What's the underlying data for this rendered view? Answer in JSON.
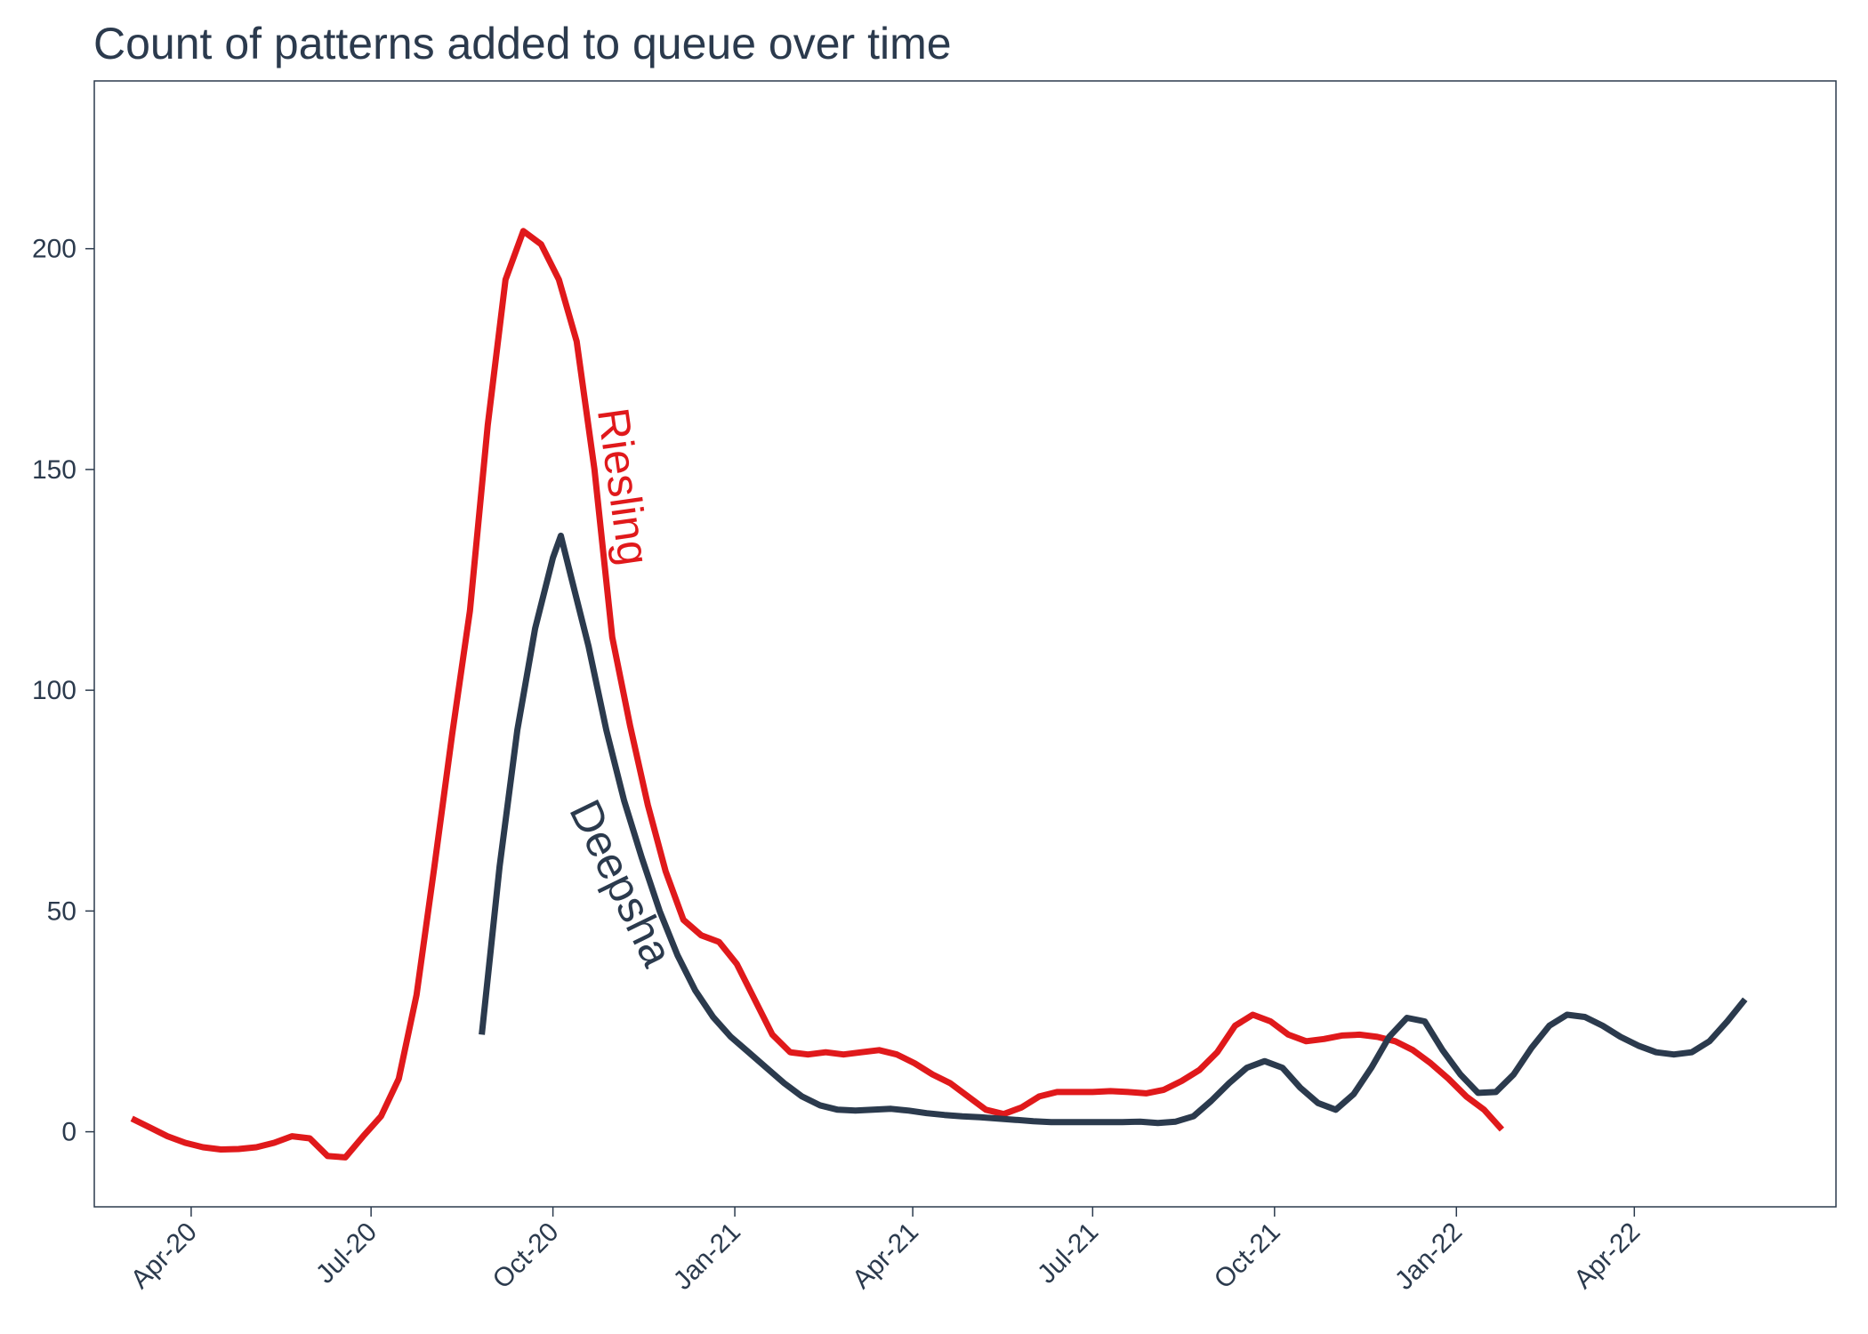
{
  "chart_data": {
    "type": "line",
    "title": "Count of patterns added to queue over time",
    "xlabel": "",
    "ylabel": "",
    "ylim": [
      -17,
      238
    ],
    "xlim": [
      "2020-02-12",
      "2022-07-12"
    ],
    "yticks": [
      0,
      50,
      100,
      150,
      200
    ],
    "xticks": [
      {
        "date": "2020-04-01",
        "label": "Apr-20"
      },
      {
        "date": "2020-07-01",
        "label": "Jul-20"
      },
      {
        "date": "2020-10-01",
        "label": "Oct-20"
      },
      {
        "date": "2021-01-01",
        "label": "Jan-21"
      },
      {
        "date": "2021-04-01",
        "label": "Apr-21"
      },
      {
        "date": "2021-07-01",
        "label": "Jul-21"
      },
      {
        "date": "2021-10-01",
        "label": "Oct-21"
      },
      {
        "date": "2022-01-01",
        "label": "Jan-22"
      },
      {
        "date": "2022-04-01",
        "label": "Apr-22"
      }
    ],
    "grid": false,
    "legend": "none",
    "series": [
      {
        "name": "Riesling",
        "color": "#e0191b",
        "points": [
          [
            "2020-03-02",
            3
          ],
          [
            "2020-03-11",
            1
          ],
          [
            "2020-03-20",
            -1
          ],
          [
            "2020-03-29",
            -2.5
          ],
          [
            "2020-04-07",
            -3.5
          ],
          [
            "2020-04-16",
            -4
          ],
          [
            "2020-04-25",
            -3.9
          ],
          [
            "2020-05-04",
            -3.5
          ],
          [
            "2020-05-13",
            -2.5
          ],
          [
            "2020-05-22",
            -1
          ],
          [
            "2020-05-31",
            -1.5
          ],
          [
            "2020-06-09",
            -5.5
          ],
          [
            "2020-06-18",
            -5.8
          ],
          [
            "2020-06-27",
            -1
          ],
          [
            "2020-07-06",
            3.5
          ],
          [
            "2020-07-15",
            12
          ],
          [
            "2020-07-24",
            31
          ],
          [
            "2020-08-02",
            60
          ],
          [
            "2020-08-11",
            90
          ],
          [
            "2020-08-20",
            118
          ],
          [
            "2020-08-29",
            160
          ],
          [
            "2020-09-07",
            193
          ],
          [
            "2020-09-16",
            204
          ],
          [
            "2020-09-25",
            201
          ],
          [
            "2020-10-04",
            193
          ],
          [
            "2020-10-13",
            179
          ],
          [
            "2020-10-22",
            150
          ],
          [
            "2020-10-31",
            112
          ],
          [
            "2020-11-09",
            92
          ],
          [
            "2020-11-18",
            74
          ],
          [
            "2020-11-27",
            59
          ],
          [
            "2020-12-06",
            48
          ],
          [
            "2020-12-15",
            44.5
          ],
          [
            "2020-12-24",
            43
          ],
          [
            "2021-01-02",
            38
          ],
          [
            "2021-01-11",
            30
          ],
          [
            "2021-01-20",
            22
          ],
          [
            "2021-01-29",
            18
          ],
          [
            "2021-02-07",
            17.5
          ],
          [
            "2021-02-16",
            18
          ],
          [
            "2021-02-25",
            17.5
          ],
          [
            "2021-03-06",
            18
          ],
          [
            "2021-03-15",
            18.5
          ],
          [
            "2021-03-24",
            17.5
          ],
          [
            "2021-04-02",
            15.5
          ],
          [
            "2021-04-11",
            13
          ],
          [
            "2021-04-20",
            11
          ],
          [
            "2021-04-29",
            8
          ],
          [
            "2021-05-08",
            5
          ],
          [
            "2021-05-17",
            4
          ],
          [
            "2021-05-26",
            5.5
          ],
          [
            "2021-06-04",
            8
          ],
          [
            "2021-06-13",
            9
          ],
          [
            "2021-06-22",
            9
          ],
          [
            "2021-07-01",
            9
          ],
          [
            "2021-07-10",
            9.2
          ],
          [
            "2021-07-19",
            9
          ],
          [
            "2021-07-28",
            8.7
          ],
          [
            "2021-08-06",
            9.5
          ],
          [
            "2021-08-15",
            11.5
          ],
          [
            "2021-08-24",
            14
          ],
          [
            "2021-09-02",
            18
          ],
          [
            "2021-09-11",
            24
          ],
          [
            "2021-09-20",
            26.5
          ],
          [
            "2021-09-29",
            25
          ],
          [
            "2021-10-08",
            22
          ],
          [
            "2021-10-17",
            20.5
          ],
          [
            "2021-10-26",
            21
          ],
          [
            "2021-11-04",
            21.8
          ],
          [
            "2021-11-13",
            22
          ],
          [
            "2021-11-22",
            21.5
          ],
          [
            "2021-12-01",
            20.5
          ],
          [
            "2021-12-10",
            18.5
          ],
          [
            "2021-12-19",
            15.5
          ],
          [
            "2021-12-28",
            12
          ],
          [
            "2022-01-06",
            8
          ],
          [
            "2022-01-15",
            5
          ],
          [
            "2022-01-24",
            0.5
          ]
        ]
      },
      {
        "name": "Deepsha",
        "color": "#2b3a4d",
        "points": [
          [
            "2020-08-26",
            22
          ],
          [
            "2020-09-04",
            60
          ],
          [
            "2020-09-13",
            91
          ],
          [
            "2020-09-22",
            114
          ],
          [
            "2020-10-01",
            130
          ],
          [
            "2020-10-05",
            135
          ],
          [
            "2020-10-10",
            126
          ],
          [
            "2020-10-19",
            110
          ],
          [
            "2020-10-28",
            91
          ],
          [
            "2020-11-06",
            75
          ],
          [
            "2020-11-15",
            62
          ],
          [
            "2020-11-24",
            50
          ],
          [
            "2020-12-03",
            40
          ],
          [
            "2020-12-12",
            32
          ],
          [
            "2020-12-21",
            26
          ],
          [
            "2020-12-30",
            21.5
          ],
          [
            "2021-01-08",
            18
          ],
          [
            "2021-01-17",
            14.5
          ],
          [
            "2021-01-26",
            11
          ],
          [
            "2021-02-04",
            8
          ],
          [
            "2021-02-13",
            6
          ],
          [
            "2021-02-22",
            5
          ],
          [
            "2021-03-03",
            4.8
          ],
          [
            "2021-03-12",
            5
          ],
          [
            "2021-03-21",
            5.2
          ],
          [
            "2021-03-30",
            4.8
          ],
          [
            "2021-04-08",
            4.2
          ],
          [
            "2021-04-17",
            3.8
          ],
          [
            "2021-04-26",
            3.5
          ],
          [
            "2021-05-05",
            3.3
          ],
          [
            "2021-05-14",
            3
          ],
          [
            "2021-05-23",
            2.7
          ],
          [
            "2021-06-01",
            2.4
          ],
          [
            "2021-06-10",
            2.2
          ],
          [
            "2021-06-19",
            2.2
          ],
          [
            "2021-06-28",
            2.2
          ],
          [
            "2021-07-07",
            2.2
          ],
          [
            "2021-07-16",
            2.2
          ],
          [
            "2021-07-25",
            2.3
          ],
          [
            "2021-08-03",
            2
          ],
          [
            "2021-08-12",
            2.3
          ],
          [
            "2021-08-21",
            3.5
          ],
          [
            "2021-08-30",
            7
          ],
          [
            "2021-09-08",
            11
          ],
          [
            "2021-09-17",
            14.5
          ],
          [
            "2021-09-26",
            16
          ],
          [
            "2021-10-05",
            14.5
          ],
          [
            "2021-10-14",
            10
          ],
          [
            "2021-10-23",
            6.5
          ],
          [
            "2021-11-01",
            5
          ],
          [
            "2021-11-10",
            8.5
          ],
          [
            "2021-11-19",
            14.5
          ],
          [
            "2021-11-28",
            21.5
          ],
          [
            "2021-12-07",
            25.8
          ],
          [
            "2021-12-16",
            25
          ],
          [
            "2021-12-25",
            18.5
          ],
          [
            "2022-01-03",
            13
          ],
          [
            "2022-01-12",
            8.8
          ],
          [
            "2022-01-21",
            9
          ],
          [
            "2022-01-30",
            13
          ],
          [
            "2022-02-08",
            19
          ],
          [
            "2022-02-17",
            24
          ],
          [
            "2022-02-26",
            26.5
          ],
          [
            "2022-03-07",
            26
          ],
          [
            "2022-03-16",
            24
          ],
          [
            "2022-03-25",
            21.5
          ],
          [
            "2022-04-03",
            19.5
          ],
          [
            "2022-04-12",
            18
          ],
          [
            "2022-04-21",
            17.5
          ],
          [
            "2022-04-30",
            18
          ],
          [
            "2022-05-09",
            20.5
          ],
          [
            "2022-05-18",
            25
          ],
          [
            "2022-05-27",
            30
          ]
        ]
      }
    ],
    "annotations": [
      {
        "text": "Riesling",
        "series": "Riesling"
      },
      {
        "text": "Deepsha",
        "series": "Deepsha"
      }
    ]
  }
}
